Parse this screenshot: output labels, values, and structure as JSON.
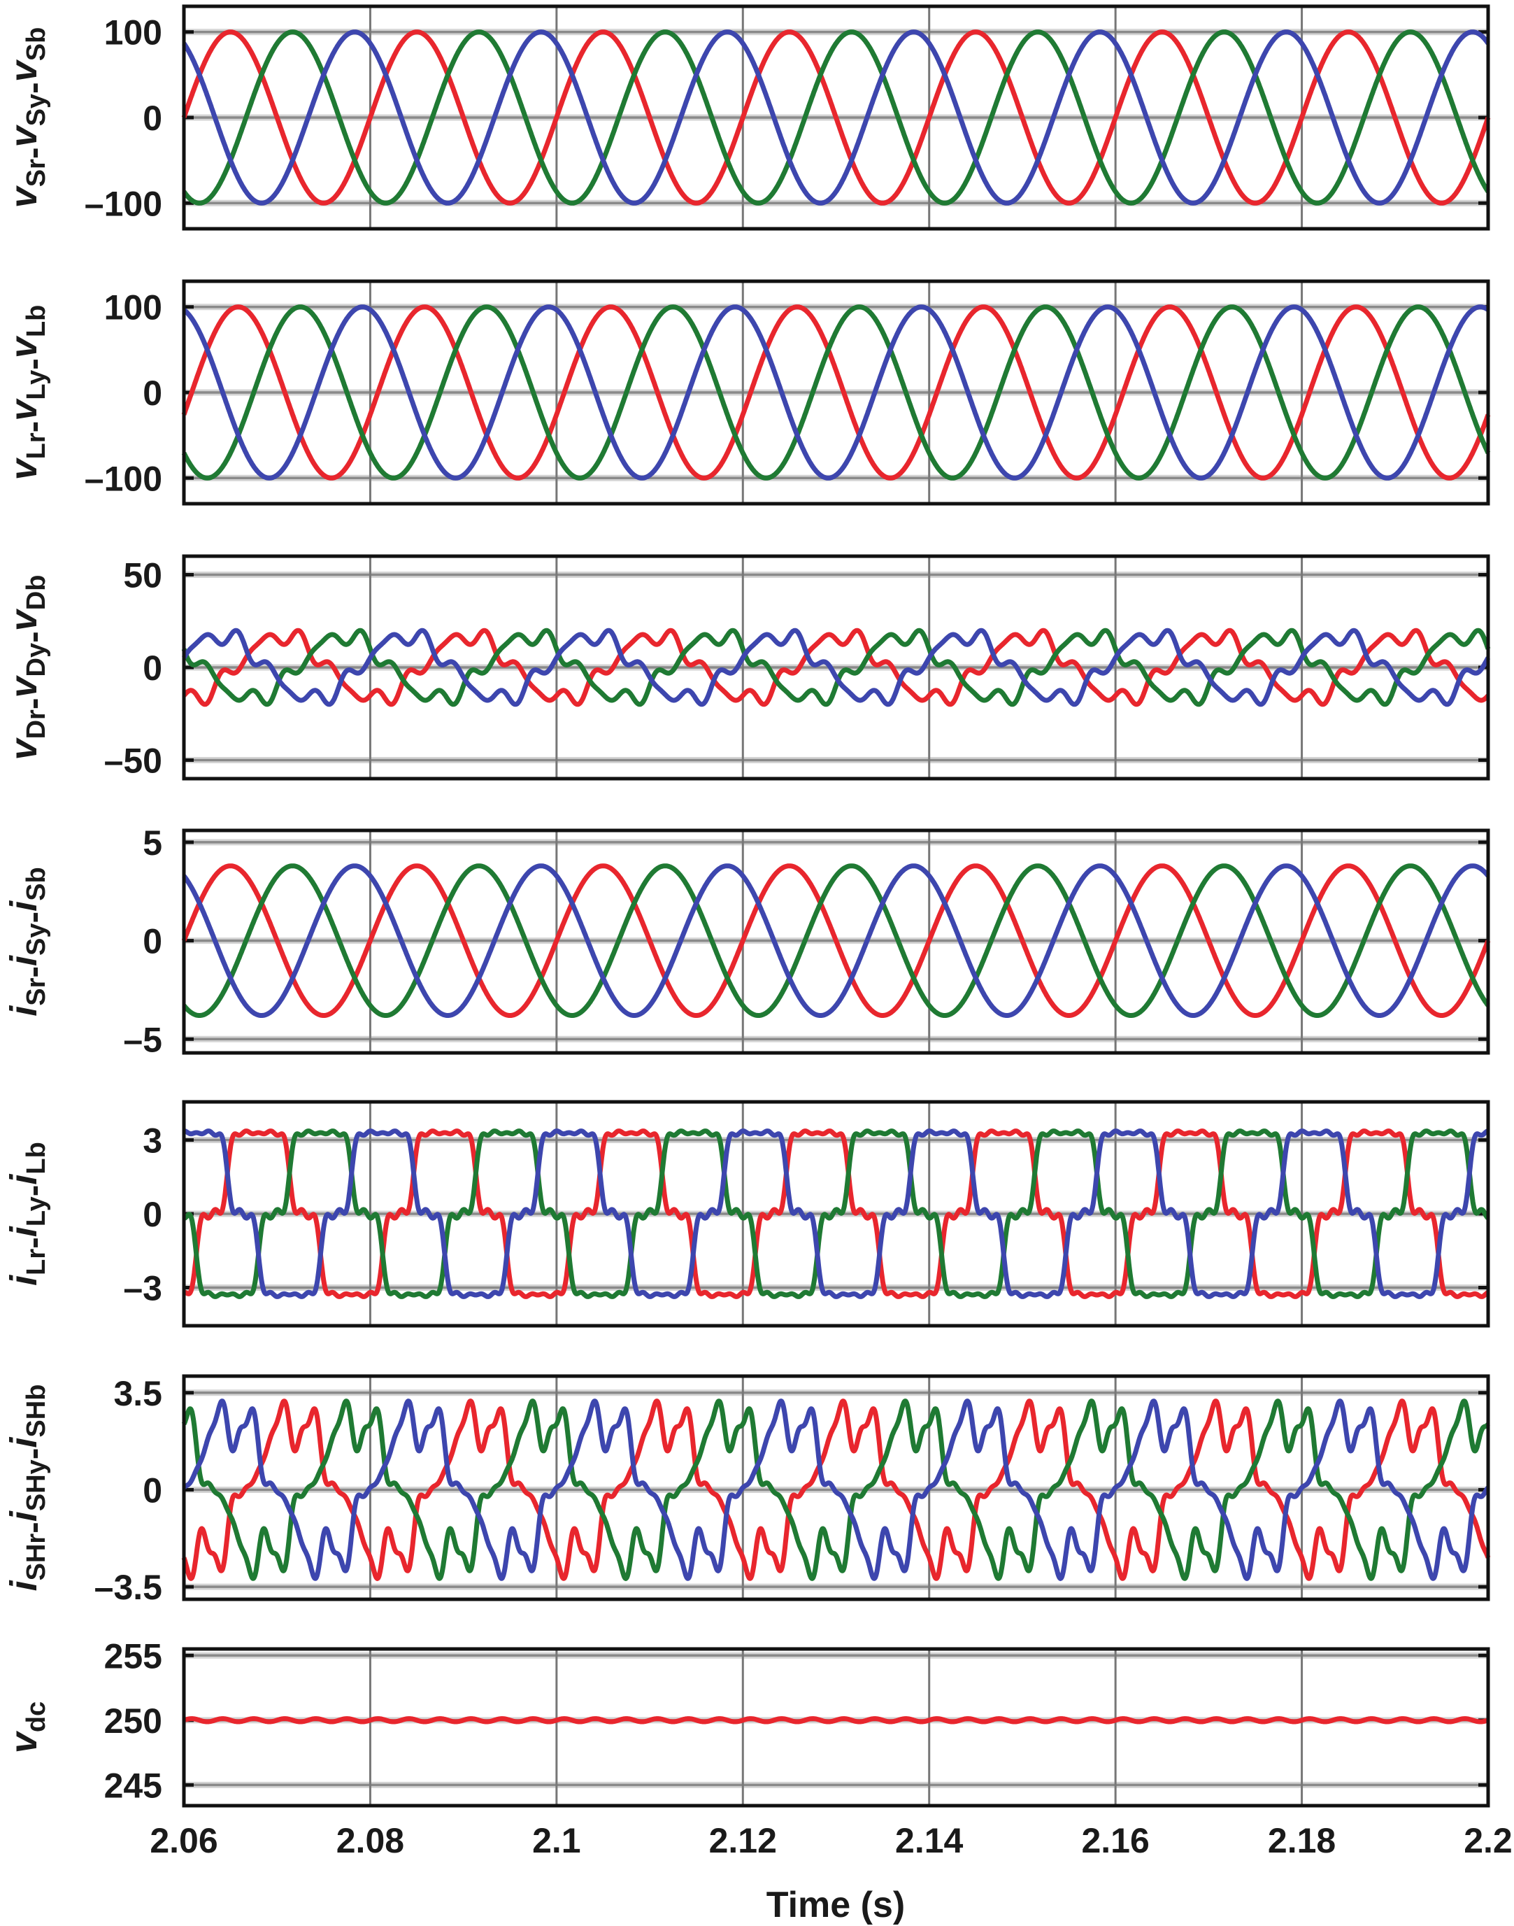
{
  "figure": {
    "xlabel": "Time (s)",
    "xlim": [
      2.06,
      2.2
    ],
    "xticks": [
      2.06,
      2.08,
      2.1,
      2.12,
      2.14,
      2.16,
      2.18,
      2.2
    ],
    "xtick_labels": [
      "2.06",
      "2.08",
      "2.1",
      "2.12",
      "2.14",
      "2.16",
      "2.18",
      "2.2"
    ],
    "colors": {
      "r": "#e8262d",
      "y": "#1f7a33",
      "b": "#3d46ae",
      "frame": "#111111",
      "grid": "#8a8a8a"
    }
  },
  "chart_data": [
    {
      "type": "line",
      "ylabel_parts": [
        {
          "main": "v",
          "sub": "Sr"
        },
        {
          "main": "v",
          "sub": "Sy"
        },
        {
          "main": "v",
          "sub": "Sb"
        }
      ],
      "separator": "-",
      "ylim": [
        -130,
        130
      ],
      "yticks": [
        100,
        0,
        -100
      ],
      "ytick_labels": [
        "100",
        "0",
        "–100"
      ],
      "grid": true,
      "fundamental_hz": 50,
      "series": [
        {
          "color": "#e8262d",
          "phase_shift_deg": 0,
          "harmonics": [
            [
              1,
              100,
              0
            ]
          ]
        },
        {
          "color": "#1f7a33",
          "phase_shift_deg": -120,
          "harmonics": [
            [
              1,
              100,
              0
            ]
          ]
        },
        {
          "color": "#3d46ae",
          "phase_shift_deg": 120,
          "harmonics": [
            [
              1,
              100,
              0
            ]
          ]
        }
      ]
    },
    {
      "type": "line",
      "ylabel_parts": [
        {
          "main": "v",
          "sub": "Lr"
        },
        {
          "main": "v",
          "sub": "Ly"
        },
        {
          "main": "v",
          "sub": "Lb"
        }
      ],
      "separator": "-",
      "ylim": [
        -130,
        130
      ],
      "yticks": [
        100,
        0,
        -100
      ],
      "ytick_labels": [
        "100",
        "0",
        "–100"
      ],
      "grid": true,
      "fundamental_hz": 50,
      "series": [
        {
          "color": "#e8262d",
          "phase_shift_deg": 0,
          "harmonics": [
            [
              1,
              100,
              -15
            ]
          ]
        },
        {
          "color": "#1f7a33",
          "phase_shift_deg": -120,
          "harmonics": [
            [
              1,
              100,
              -15
            ]
          ]
        },
        {
          "color": "#3d46ae",
          "phase_shift_deg": 120,
          "harmonics": [
            [
              1,
              100,
              -15
            ]
          ]
        }
      ]
    },
    {
      "type": "line",
      "ylabel_parts": [
        {
          "main": "v",
          "sub": "Dr"
        },
        {
          "main": "v",
          "sub": "Dy"
        },
        {
          "main": "v",
          "sub": "Db"
        }
      ],
      "separator": "-",
      "ylim": [
        -60,
        60
      ],
      "yticks": [
        50,
        0,
        -50
      ],
      "ytick_labels": [
        "50",
        "0",
        "–50"
      ],
      "grid": true,
      "fundamental_hz": 50,
      "series": [
        {
          "color": "#e8262d",
          "phase_shift_deg": 0,
          "harmonics": [
            [
              1,
              17,
              -99
            ],
            [
              5,
              3.5,
              60
            ],
            [
              7,
              2.2,
              -40
            ]
          ]
        },
        {
          "color": "#1f7a33",
          "phase_shift_deg": -120,
          "harmonics": [
            [
              1,
              17,
              -99
            ],
            [
              5,
              3.5,
              60
            ],
            [
              7,
              2.2,
              -40
            ]
          ]
        },
        {
          "color": "#3d46ae",
          "phase_shift_deg": 120,
          "harmonics": [
            [
              1,
              17,
              -99
            ],
            [
              5,
              3.5,
              60
            ],
            [
              7,
              2.2,
              -40
            ]
          ]
        }
      ]
    },
    {
      "type": "line",
      "ylabel_parts": [
        {
          "main": "i",
          "sub": "Sr"
        },
        {
          "main": "i",
          "sub": "Sy"
        },
        {
          "main": "i",
          "sub": "Sb"
        }
      ],
      "separator": "-",
      "ylim": [
        -5.7,
        5.6
      ],
      "yticks": [
        5,
        0,
        -5
      ],
      "ytick_labels": [
        "5",
        "0",
        "–5"
      ],
      "grid": true,
      "fundamental_hz": 50,
      "series": [
        {
          "color": "#e8262d",
          "phase_shift_deg": 0,
          "harmonics": [
            [
              1,
              3.8,
              0
            ]
          ]
        },
        {
          "color": "#1f7a33",
          "phase_shift_deg": -120,
          "harmonics": [
            [
              1,
              3.8,
              0
            ]
          ]
        },
        {
          "color": "#3d46ae",
          "phase_shift_deg": 120,
          "harmonics": [
            [
              1,
              3.8,
              0
            ]
          ]
        }
      ]
    },
    {
      "type": "line",
      "ylabel_parts": [
        {
          "main": "i",
          "sub": "Lr"
        },
        {
          "main": "i",
          "sub": "Ly"
        },
        {
          "main": "i",
          "sub": "Lb"
        }
      ],
      "separator": "-",
      "ylim": [
        -4.55,
        4.55
      ],
      "yticks": [
        3,
        0,
        -3
      ],
      "ytick_labels": [
        "3",
        "0",
        "–3"
      ],
      "grid": true,
      "fundamental_hz": 50,
      "series": [
        {
          "color": "#e8262d",
          "phase_shift_deg": 0,
          "harmonics": [
            [
              1,
              3.6,
              -54
            ],
            [
              5,
              0.6,
              -90
            ],
            [
              7,
              0.35,
              162
            ],
            [
              11,
              0.2,
              126
            ],
            [
              13,
              0.15,
              18
            ]
          ]
        },
        {
          "color": "#1f7a33",
          "phase_shift_deg": -120,
          "harmonics": [
            [
              1,
              3.6,
              -54
            ],
            [
              5,
              0.6,
              -90
            ],
            [
              7,
              0.35,
              162
            ],
            [
              11,
              0.2,
              126
            ],
            [
              13,
              0.15,
              18
            ]
          ]
        },
        {
          "color": "#3d46ae",
          "phase_shift_deg": 120,
          "harmonics": [
            [
              1,
              3.6,
              -54
            ],
            [
              5,
              0.6,
              -90
            ],
            [
              7,
              0.35,
              162
            ],
            [
              11,
              0.2,
              126
            ],
            [
              13,
              0.15,
              18
            ]
          ]
        }
      ]
    },
    {
      "type": "line",
      "ylabel_parts": [
        {
          "main": "i",
          "sub": "SHr"
        },
        {
          "main": "i",
          "sub": "SHy"
        },
        {
          "main": "i",
          "sub": "SHb"
        }
      ],
      "separator": "-",
      "ylim": [
        -3.95,
        4.1
      ],
      "yticks": [
        3.5,
        0,
        -3.5
      ],
      "ytick_labels": [
        "3.5",
        "0",
        "–3.5"
      ],
      "grid": true,
      "fundamental_hz": 50,
      "series": [
        {
          "color": "#e8262d",
          "phase_shift_deg": 0,
          "harmonics": [
            [
              1,
              2.5,
              -120
            ],
            [
              5,
              0.6,
              -90
            ],
            [
              7,
              0.35,
              162
            ],
            [
              11,
              0.2,
              126
            ],
            [
              13,
              0.15,
              18
            ]
          ]
        },
        {
          "color": "#1f7a33",
          "phase_shift_deg": -120,
          "harmonics": [
            [
              1,
              2.5,
              -120
            ],
            [
              5,
              0.6,
              -90
            ],
            [
              7,
              0.35,
              162
            ],
            [
              11,
              0.2,
              126
            ],
            [
              13,
              0.15,
              18
            ]
          ]
        },
        {
          "color": "#3d46ae",
          "phase_shift_deg": 120,
          "harmonics": [
            [
              1,
              2.5,
              -120
            ],
            [
              5,
              0.6,
              -90
            ],
            [
              7,
              0.35,
              162
            ],
            [
              11,
              0.2,
              126
            ],
            [
              13,
              0.15,
              18
            ]
          ]
        }
      ]
    },
    {
      "type": "line",
      "ylabel_parts": [
        {
          "main": "v",
          "sub": "dc"
        }
      ],
      "separator": "-",
      "ylim": [
        243.4,
        255.5
      ],
      "yticks": [
        255,
        250,
        245
      ],
      "ytick_labels": [
        "255",
        "250",
        "245"
      ],
      "grid": true,
      "fundamental_hz": 50,
      "series": [
        {
          "color": "#e8262d",
          "phase_shift_deg": 0,
          "offset": 250,
          "harmonics": [
            [
              6,
              0.12,
              0
            ]
          ]
        }
      ]
    }
  ]
}
